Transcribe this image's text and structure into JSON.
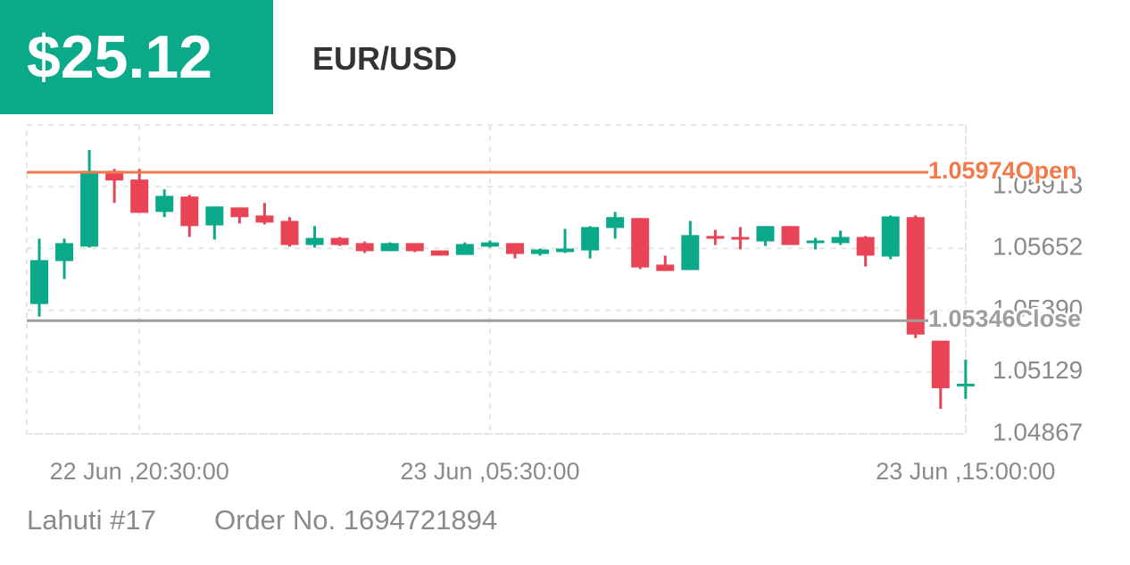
{
  "header": {
    "amount": "$25.12",
    "pair": "EUR/USD"
  },
  "footer": {
    "account": "Lahuti #17",
    "order": "Order No. 1694721894"
  },
  "chart_data": {
    "type": "candlestick",
    "categories": [
      null,
      null,
      null,
      null,
      "22 Jun ,20:30:00",
      null,
      null,
      null,
      null,
      null,
      null,
      null,
      null,
      null,
      null,
      null,
      null,
      null,
      "23 Jun ,05:30:00",
      null,
      null,
      null,
      null,
      null,
      null,
      null,
      null,
      null,
      null,
      null,
      null,
      null,
      null,
      null,
      null,
      null,
      null,
      "23 Jun ,15:00:00"
    ],
    "open": [
      1.05416,
      1.05598,
      1.05659,
      1.0598,
      1.05943,
      1.05806,
      1.05871,
      1.05749,
      1.05825,
      1.05791,
      1.05768,
      1.05666,
      1.05696,
      1.05674,
      1.0564,
      1.05674,
      1.05643,
      1.05624,
      1.05659,
      1.05674,
      1.05628,
      1.05636,
      1.05643,
      1.05738,
      1.0578,
      1.05583,
      1.0556,
      1.05704,
      1.057,
      1.05681,
      1.05746,
      1.05674,
      1.05674,
      1.057,
      1.05617,
      1.05784,
      1.05261,
      1.05068
    ],
    "high": [
      1.05693,
      1.05693,
      1.06068,
      1.05988,
      1.05988,
      1.05901,
      1.05878,
      1.05829,
      1.05825,
      1.05844,
      1.05784,
      1.05746,
      1.057,
      1.05681,
      1.05677,
      1.05674,
      1.05643,
      1.05677,
      1.05685,
      1.05674,
      1.05651,
      1.05734,
      1.05746,
      1.05806,
      1.0578,
      1.05621,
      1.05768,
      1.0573,
      1.05742,
      1.05746,
      1.05746,
      1.05696,
      1.05727,
      1.05704,
      1.05791,
      1.05791,
      1.05261,
      1.05181
    ],
    "low": [
      1.05363,
      1.05522,
      1.05655,
      1.05844,
      1.05802,
      1.05784,
      1.057,
      1.05689,
      1.05757,
      1.05753,
      1.05659,
      1.05655,
      1.05662,
      1.05632,
      1.0564,
      1.05636,
      1.05621,
      1.05624,
      1.05655,
      1.05609,
      1.05621,
      1.05632,
      1.05609,
      1.05693,
      1.05564,
      1.05556,
      1.0556,
      1.05666,
      1.05647,
      1.05662,
      1.05666,
      1.05647,
      1.05666,
      1.05575,
      1.05606,
      1.05272,
      1.04973,
      1.05015
    ],
    "close": [
      1.05602,
      1.05674,
      1.0598,
      1.05939,
      1.05802,
      1.05874,
      1.05746,
      1.05829,
      1.05784,
      1.05761,
      1.05666,
      1.05696,
      1.05666,
      1.0564,
      1.05674,
      1.0564,
      1.05621,
      1.0567,
      1.05677,
      1.05628,
      1.05647,
      1.05651,
      1.05742,
      1.05784,
      1.05571,
      1.05556,
      1.05708,
      1.05696,
      1.05693,
      1.05746,
      1.05666,
      1.05685,
      1.057,
      1.05621,
      1.05787,
      1.05287,
      1.0506,
      1.05079
    ],
    "up_color": "#0aa98a",
    "down_color": "#e84456",
    "ylim": [
      1.04867,
      1.06174
    ],
    "yticks": [
      1.04867,
      1.05129,
      {
        "value": 1.0539,
        "label": "1.05390"
      },
      1.05652,
      1.05913
    ],
    "grid": true,
    "lines": [
      {
        "value": 1.05974,
        "label": "Open",
        "color": "#f07a4a"
      },
      {
        "value": 1.05346,
        "label": "Close",
        "color": "#9e9e9e"
      }
    ]
  }
}
